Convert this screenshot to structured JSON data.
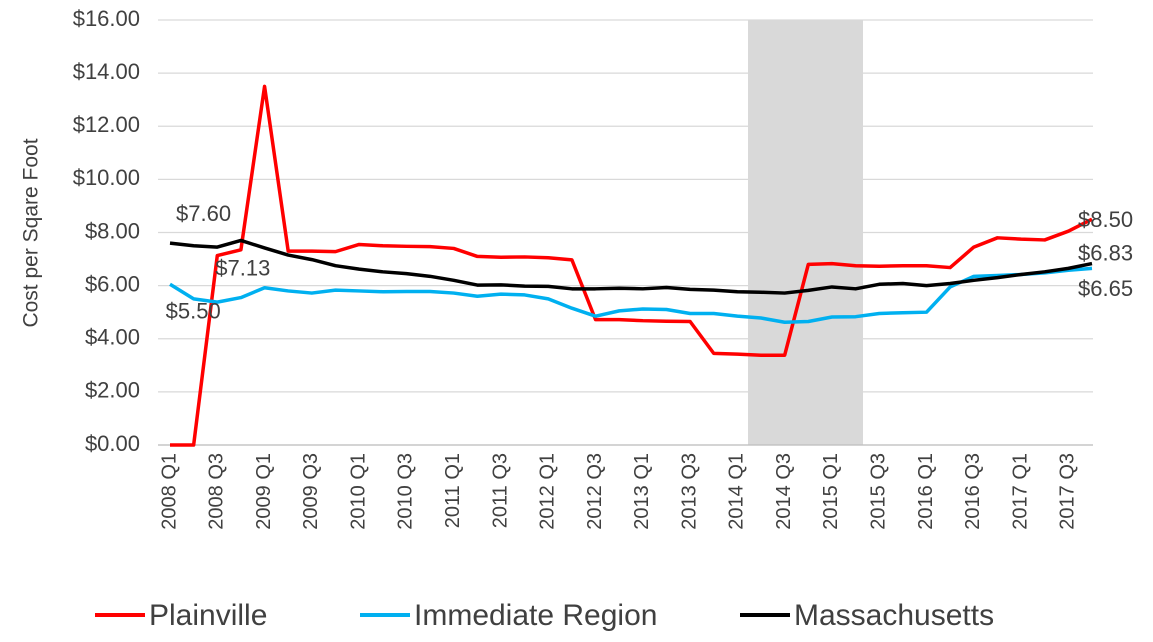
{
  "chart_data": {
    "type": "line",
    "y_label": "Cost per Sqare Foot",
    "categories": [
      "2008 Q1",
      null,
      "2008 Q3",
      null,
      "2009 Q1",
      null,
      "2009 Q3",
      null,
      "2010 Q1",
      null,
      "2010 Q3",
      null,
      "2011 Q1",
      null,
      "2011 Q3",
      null,
      "2012 Q1",
      null,
      "2012 Q3",
      null,
      "2013 Q1",
      null,
      "2013 Q3",
      null,
      "2014 Q1",
      null,
      "2014 Q3",
      null,
      "2015 Q1",
      null,
      "2015 Q3",
      null,
      "2016 Q1",
      null,
      "2016 Q3",
      null,
      "2017 Q1",
      null,
      "2017 Q3",
      null
    ],
    "series": [
      {
        "name": "Plainville",
        "color": "#ff0000",
        "values": [
          0,
          0,
          7.13,
          7.35,
          13.5,
          7.3,
          7.3,
          7.28,
          7.55,
          7.5,
          7.48,
          7.47,
          7.4,
          7.1,
          7.07,
          7.08,
          7.05,
          6.97,
          4.72,
          4.72,
          4.68,
          4.66,
          4.65,
          3.45,
          3.42,
          3.38,
          3.38,
          6.8,
          6.83,
          6.75,
          6.73,
          6.75,
          6.75,
          6.68,
          7.45,
          7.8,
          7.75,
          7.72,
          8.05,
          8.5
        ],
        "value_labels": [
          null,
          null,
          "$7.13",
          null,
          null,
          null,
          null,
          null,
          null,
          null,
          null,
          null,
          null,
          null,
          null,
          null,
          null,
          null,
          null,
          null,
          null,
          null,
          null,
          null,
          null,
          null,
          null,
          null,
          null,
          null,
          null,
          null,
          null,
          null,
          null,
          null,
          null,
          null,
          null,
          "$8.50"
        ]
      },
      {
        "name": "Immediate Region",
        "color": "#00b0f0",
        "values": [
          6.05,
          5.5,
          5.38,
          5.55,
          5.92,
          5.8,
          5.72,
          5.83,
          5.8,
          5.77,
          5.78,
          5.78,
          5.72,
          5.6,
          5.68,
          5.65,
          5.5,
          5.15,
          4.85,
          5.05,
          5.12,
          5.1,
          4.95,
          4.95,
          4.85,
          4.78,
          4.62,
          4.65,
          4.82,
          4.83,
          4.95,
          4.98,
          5.0,
          5.95,
          6.35,
          6.38,
          6.42,
          6.48,
          6.58,
          6.65
        ],
        "value_labels": [
          null,
          "$5.50",
          null,
          null,
          null,
          null,
          null,
          null,
          null,
          null,
          null,
          null,
          null,
          null,
          null,
          null,
          null,
          null,
          null,
          null,
          null,
          null,
          null,
          null,
          null,
          null,
          null,
          null,
          null,
          null,
          null,
          null,
          null,
          null,
          null,
          null,
          null,
          null,
          null,
          "$6.65"
        ]
      },
      {
        "name": "Massachusetts",
        "color": "#000000",
        "values": [
          7.6,
          7.5,
          7.45,
          7.7,
          7.42,
          7.15,
          6.98,
          6.75,
          6.62,
          6.52,
          6.45,
          6.35,
          6.2,
          6.02,
          6.03,
          5.98,
          5.97,
          5.88,
          5.88,
          5.9,
          5.88,
          5.93,
          5.86,
          5.83,
          5.77,
          5.75,
          5.72,
          5.82,
          5.95,
          5.88,
          6.05,
          6.08,
          6.0,
          6.08,
          6.2,
          6.3,
          6.42,
          6.52,
          6.65,
          6.83
        ],
        "value_labels": [
          "$7.60",
          null,
          null,
          null,
          null,
          null,
          null,
          null,
          null,
          null,
          null,
          null,
          null,
          null,
          null,
          null,
          null,
          null,
          null,
          null,
          null,
          null,
          null,
          null,
          null,
          null,
          null,
          null,
          null,
          null,
          null,
          null,
          null,
          null,
          null,
          null,
          null,
          null,
          null,
          "$6.83"
        ]
      }
    ],
    "ylim": [
      0,
      16
    ],
    "yticks": [
      {
        "value": 0,
        "label": "$0.00"
      },
      {
        "value": 2,
        "label": "$2.00"
      },
      {
        "value": 4,
        "label": "$4.00"
      },
      {
        "value": 6,
        "label": "$6.00"
      },
      {
        "value": 8,
        "label": "$8.00"
      },
      {
        "value": 10,
        "label": "$10.00"
      },
      {
        "value": 12,
        "label": "$12.00"
      },
      {
        "value": 14,
        "label": "$14.00"
      },
      {
        "value": 16,
        "label": "$16.00"
      }
    ],
    "grid": true,
    "legend": "bottom"
  }
}
